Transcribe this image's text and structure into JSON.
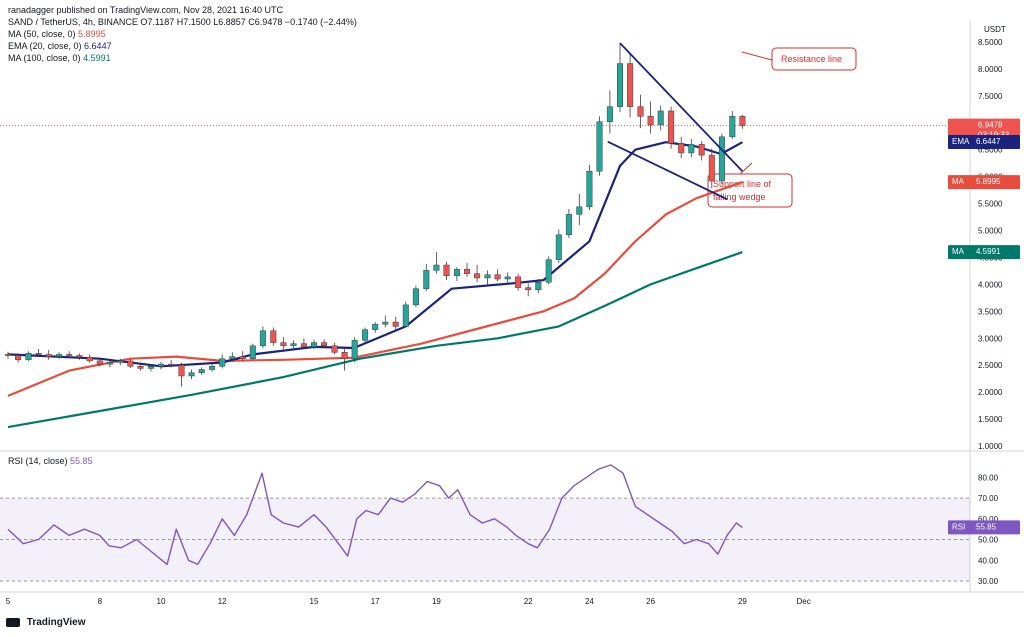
{
  "header": {
    "publisher": "ranadagger published on TradingView.com, Nov 28, 2021 16:40 UTC",
    "symbol_line": "SAND / TetherUS, 4h, BINANCE  O7.1187 H7.1500 L6.8857 C6.9478 −0.1740 (−2.44%)",
    "ma50": "MA (50, close, 0)",
    "ma50_val": "5.8995",
    "ema20": "EMA (20, close, 0)",
    "ema20_val": "6.6447",
    "ma100": "MA (100, close, 0)",
    "ma100_val": "4.5991",
    "rsi_title": "RSI (14, close)",
    "rsi_val": "55.85"
  },
  "footer": {
    "brand": "TradingView"
  },
  "colors": {
    "ema20": "#1a237e",
    "ma50": "#e74c3c",
    "ma100": "#00796b",
    "up": "#26a69a",
    "down": "#ef5350",
    "rsi": "#7e57c2",
    "annotation": "#d32f2f"
  },
  "annotations": {
    "resistance": "Resistance line",
    "support_1": "Support line of",
    "support_2": "falling wedge"
  },
  "price_tags": {
    "last": "6.9478",
    "countdown": "03:19:33",
    "ema": "EMA",
    "ema_val": "6.6447",
    "ma50": "MA",
    "ma50_val": "5.8995",
    "ma100": "MA",
    "ma100_val": "4.5991",
    "rsi": "RSI",
    "rsi_val": "55.85"
  },
  "chart_data": [
    {
      "type": "candlestick",
      "title": "SAND / TetherUS, 4h, BINANCE",
      "y_unit": "USDT",
      "ylim": [
        1.0,
        8.5
      ],
      "y_ticks": [
        "1.0000",
        "1.5000",
        "2.0000",
        "2.5000",
        "3.0000",
        "3.5000",
        "4.0000",
        "4.5000",
        "5.0000",
        "5.5000",
        "6.0000",
        "6.5000",
        "7.0000",
        "7.5000",
        "8.0000",
        "8.5000"
      ],
      "x_ticks": [
        "5",
        "8",
        "10",
        "12",
        "15",
        "17",
        "19",
        "22",
        "24",
        "26",
        "29",
        "Dec"
      ],
      "x_tick_days": [
        5,
        8,
        10,
        12,
        15,
        17,
        19,
        22,
        24,
        26,
        29,
        31
      ],
      "x_range_days": [
        5,
        33
      ],
      "candles": [
        {
          "d": 5.0,
          "o": 2.7,
          "h": 2.75,
          "l": 2.62,
          "c": 2.68
        },
        {
          "d": 5.33,
          "o": 2.68,
          "h": 2.72,
          "l": 2.55,
          "c": 2.6
        },
        {
          "d": 5.67,
          "o": 2.6,
          "h": 2.76,
          "l": 2.58,
          "c": 2.72
        },
        {
          "d": 6.0,
          "o": 2.72,
          "h": 2.8,
          "l": 2.66,
          "c": 2.7
        },
        {
          "d": 6.33,
          "o": 2.7,
          "h": 2.78,
          "l": 2.6,
          "c": 2.66
        },
        {
          "d": 6.67,
          "o": 2.66,
          "h": 2.74,
          "l": 2.62,
          "c": 2.7
        },
        {
          "d": 7.0,
          "o": 2.7,
          "h": 2.76,
          "l": 2.64,
          "c": 2.68
        },
        {
          "d": 7.33,
          "o": 2.68,
          "h": 2.72,
          "l": 2.6,
          "c": 2.65
        },
        {
          "d": 7.67,
          "o": 2.65,
          "h": 2.7,
          "l": 2.55,
          "c": 2.58
        },
        {
          "d": 8.0,
          "o": 2.58,
          "h": 2.64,
          "l": 2.48,
          "c": 2.52
        },
        {
          "d": 8.33,
          "o": 2.52,
          "h": 2.6,
          "l": 2.46,
          "c": 2.55
        },
        {
          "d": 8.67,
          "o": 2.55,
          "h": 2.62,
          "l": 2.5,
          "c": 2.58
        },
        {
          "d": 9.0,
          "o": 2.58,
          "h": 2.62,
          "l": 2.45,
          "c": 2.48
        },
        {
          "d": 9.33,
          "o": 2.48,
          "h": 2.55,
          "l": 2.4,
          "c": 2.44
        },
        {
          "d": 9.67,
          "o": 2.44,
          "h": 2.52,
          "l": 2.38,
          "c": 2.48
        },
        {
          "d": 10.0,
          "o": 2.48,
          "h": 2.56,
          "l": 2.42,
          "c": 2.52
        },
        {
          "d": 10.33,
          "o": 2.52,
          "h": 2.6,
          "l": 2.46,
          "c": 2.5
        },
        {
          "d": 10.67,
          "o": 2.5,
          "h": 2.55,
          "l": 2.1,
          "c": 2.3
        },
        {
          "d": 11.0,
          "o": 2.3,
          "h": 2.42,
          "l": 2.24,
          "c": 2.36
        },
        {
          "d": 11.33,
          "o": 2.36,
          "h": 2.46,
          "l": 2.32,
          "c": 2.42
        },
        {
          "d": 11.67,
          "o": 2.42,
          "h": 2.52,
          "l": 2.38,
          "c": 2.48
        },
        {
          "d": 12.0,
          "o": 2.48,
          "h": 2.7,
          "l": 2.44,
          "c": 2.62
        },
        {
          "d": 12.33,
          "o": 2.62,
          "h": 2.74,
          "l": 2.56,
          "c": 2.66
        },
        {
          "d": 12.67,
          "o": 2.66,
          "h": 2.76,
          "l": 2.58,
          "c": 2.62
        },
        {
          "d": 13.0,
          "o": 2.62,
          "h": 2.9,
          "l": 2.6,
          "c": 2.86
        },
        {
          "d": 13.33,
          "o": 2.86,
          "h": 3.22,
          "l": 2.82,
          "c": 3.14
        },
        {
          "d": 13.67,
          "o": 3.14,
          "h": 3.2,
          "l": 2.86,
          "c": 2.92
        },
        {
          "d": 14.0,
          "o": 2.92,
          "h": 3.02,
          "l": 2.8,
          "c": 2.86
        },
        {
          "d": 14.33,
          "o": 2.86,
          "h": 2.96,
          "l": 2.78,
          "c": 2.9
        },
        {
          "d": 14.67,
          "o": 2.9,
          "h": 3.0,
          "l": 2.82,
          "c": 2.84
        },
        {
          "d": 15.0,
          "o": 2.84,
          "h": 2.98,
          "l": 2.8,
          "c": 2.92
        },
        {
          "d": 15.33,
          "o": 2.92,
          "h": 2.98,
          "l": 2.82,
          "c": 2.86
        },
        {
          "d": 15.67,
          "o": 2.86,
          "h": 2.92,
          "l": 2.7,
          "c": 2.74
        },
        {
          "d": 16.0,
          "o": 2.74,
          "h": 2.8,
          "l": 2.4,
          "c": 2.62
        },
        {
          "d": 16.33,
          "o": 2.62,
          "h": 3.02,
          "l": 2.56,
          "c": 2.96
        },
        {
          "d": 16.67,
          "o": 2.96,
          "h": 3.2,
          "l": 2.92,
          "c": 3.16
        },
        {
          "d": 17.0,
          "o": 3.16,
          "h": 3.3,
          "l": 3.1,
          "c": 3.26
        },
        {
          "d": 17.33,
          "o": 3.26,
          "h": 3.42,
          "l": 3.2,
          "c": 3.3
        },
        {
          "d": 17.67,
          "o": 3.3,
          "h": 3.4,
          "l": 3.16,
          "c": 3.22
        },
        {
          "d": 18.0,
          "o": 3.22,
          "h": 3.68,
          "l": 3.2,
          "c": 3.62
        },
        {
          "d": 18.33,
          "o": 3.62,
          "h": 3.98,
          "l": 3.58,
          "c": 3.92
        },
        {
          "d": 18.67,
          "o": 3.92,
          "h": 4.38,
          "l": 3.88,
          "c": 4.26
        },
        {
          "d": 19.0,
          "o": 4.26,
          "h": 4.6,
          "l": 4.2,
          "c": 4.36
        },
        {
          "d": 19.33,
          "o": 4.36,
          "h": 4.42,
          "l": 4.08,
          "c": 4.16
        },
        {
          "d": 19.67,
          "o": 4.16,
          "h": 4.32,
          "l": 4.06,
          "c": 4.28
        },
        {
          "d": 20.0,
          "o": 4.28,
          "h": 4.4,
          "l": 4.14,
          "c": 4.2
        },
        {
          "d": 20.33,
          "o": 4.2,
          "h": 4.36,
          "l": 4.04,
          "c": 4.12
        },
        {
          "d": 20.67,
          "o": 4.12,
          "h": 4.26,
          "l": 4.0,
          "c": 4.18
        },
        {
          "d": 21.0,
          "o": 4.18,
          "h": 4.28,
          "l": 4.06,
          "c": 4.1
        },
        {
          "d": 21.33,
          "o": 4.1,
          "h": 4.22,
          "l": 4.0,
          "c": 4.14
        },
        {
          "d": 21.67,
          "o": 4.14,
          "h": 4.2,
          "l": 3.88,
          "c": 3.94
        },
        {
          "d": 22.0,
          "o": 3.94,
          "h": 4.02,
          "l": 3.78,
          "c": 3.9
        },
        {
          "d": 22.33,
          "o": 3.9,
          "h": 4.1,
          "l": 3.84,
          "c": 4.04
        },
        {
          "d": 22.67,
          "o": 4.04,
          "h": 4.52,
          "l": 4.0,
          "c": 4.46
        },
        {
          "d": 23.0,
          "o": 4.46,
          "h": 5.02,
          "l": 4.4,
          "c": 4.92
        },
        {
          "d": 23.33,
          "o": 4.92,
          "h": 5.4,
          "l": 4.86,
          "c": 5.3
        },
        {
          "d": 23.67,
          "o": 5.3,
          "h": 5.68,
          "l": 5.1,
          "c": 5.44
        },
        {
          "d": 24.0,
          "o": 5.44,
          "h": 6.22,
          "l": 5.38,
          "c": 6.1
        },
        {
          "d": 24.33,
          "o": 6.1,
          "h": 7.12,
          "l": 6.02,
          "c": 7.02
        },
        {
          "d": 24.67,
          "o": 7.02,
          "h": 7.6,
          "l": 6.8,
          "c": 7.3
        },
        {
          "d": 25.0,
          "o": 7.3,
          "h": 8.48,
          "l": 7.2,
          "c": 8.1
        },
        {
          "d": 25.33,
          "o": 8.1,
          "h": 8.3,
          "l": 7.1,
          "c": 7.3
        },
        {
          "d": 25.67,
          "o": 7.3,
          "h": 7.52,
          "l": 6.9,
          "c": 7.12
        },
        {
          "d": 26.0,
          "o": 7.12,
          "h": 7.4,
          "l": 6.8,
          "c": 6.96
        },
        {
          "d": 26.33,
          "o": 6.96,
          "h": 7.32,
          "l": 6.86,
          "c": 7.22
        },
        {
          "d": 26.67,
          "o": 7.22,
          "h": 7.3,
          "l": 6.52,
          "c": 6.62
        },
        {
          "d": 27.0,
          "o": 6.62,
          "h": 6.74,
          "l": 6.34,
          "c": 6.44
        },
        {
          "d": 27.33,
          "o": 6.44,
          "h": 6.7,
          "l": 6.36,
          "c": 6.6
        },
        {
          "d": 27.67,
          "o": 6.6,
          "h": 6.66,
          "l": 6.3,
          "c": 6.4
        },
        {
          "d": 28.0,
          "o": 6.4,
          "h": 6.52,
          "l": 5.78,
          "c": 5.92
        },
        {
          "d": 28.33,
          "o": 5.92,
          "h": 6.8,
          "l": 5.86,
          "c": 6.74
        },
        {
          "d": 28.67,
          "o": 6.74,
          "h": 7.22,
          "l": 6.7,
          "c": 7.12
        },
        {
          "d": 29.0,
          "o": 7.12,
          "h": 7.15,
          "l": 6.89,
          "c": 6.95
        }
      ],
      "ema20": [
        [
          5,
          2.7
        ],
        [
          8,
          2.62
        ],
        [
          10,
          2.48
        ],
        [
          12,
          2.55
        ],
        [
          13,
          2.7
        ],
        [
          15,
          2.84
        ],
        [
          16.3,
          2.82
        ],
        [
          18,
          3.22
        ],
        [
          19.5,
          3.92
        ],
        [
          21.5,
          4.02
        ],
        [
          22.5,
          4.08
        ],
        [
          24,
          4.8
        ],
        [
          25,
          6.2
        ],
        [
          25.5,
          6.5
        ],
        [
          26.5,
          6.64
        ],
        [
          27.5,
          6.56
        ],
        [
          28.3,
          6.42
        ],
        [
          29,
          6.64
        ]
      ],
      "ma50": [
        [
          5,
          1.93
        ],
        [
          7,
          2.4
        ],
        [
          9,
          2.62
        ],
        [
          10.5,
          2.66
        ],
        [
          12,
          2.58
        ],
        [
          14,
          2.6
        ],
        [
          16.3,
          2.64
        ],
        [
          18.5,
          2.9
        ],
        [
          20.5,
          3.2
        ],
        [
          22.5,
          3.5
        ],
        [
          23.5,
          3.74
        ],
        [
          24.5,
          4.2
        ],
        [
          25.5,
          4.8
        ],
        [
          26.5,
          5.3
        ],
        [
          27.5,
          5.6
        ],
        [
          29,
          5.9
        ]
      ],
      "ma100": [
        [
          5,
          1.35
        ],
        [
          8,
          1.65
        ],
        [
          11,
          1.95
        ],
        [
          14,
          2.28
        ],
        [
          16.5,
          2.62
        ],
        [
          19,
          2.86
        ],
        [
          21,
          3.0
        ],
        [
          23,
          3.22
        ],
        [
          24.5,
          3.6
        ],
        [
          26,
          4.0
        ],
        [
          27.5,
          4.3
        ],
        [
          29,
          4.6
        ]
      ],
      "trendlines": [
        {
          "name": "Resistance line",
          "from": [
            25.0,
            8.48
          ],
          "to": [
            29.0,
            6.1
          ]
        },
        {
          "name": "Support line of falling wedge",
          "from": [
            24.6,
            6.65
          ],
          "to": [
            28.5,
            5.58
          ]
        }
      ],
      "last_price": 6.9478
    },
    {
      "type": "line",
      "title": "RSI (14, close)",
      "ylim": [
        25,
        90
      ],
      "y_ticks": [
        "30.00",
        "40.00",
        "50.00",
        "60.00",
        "70.00",
        "80.00"
      ],
      "bands": [
        30,
        70
      ],
      "midline": 50,
      "series": [
        {
          "name": "RSI",
          "points": [
            [
              5,
              55
            ],
            [
              5.5,
              48
            ],
            [
              6,
              50
            ],
            [
              6.5,
              57
            ],
            [
              7,
              52
            ],
            [
              7.5,
              55
            ],
            [
              8,
              52
            ],
            [
              8.3,
              47
            ],
            [
              8.7,
              46
            ],
            [
              9.2,
              50
            ],
            [
              9.7,
              44
            ],
            [
              10.2,
              38
            ],
            [
              10.5,
              55
            ],
            [
              10.9,
              40
            ],
            [
              11.2,
              38
            ],
            [
              11.6,
              48
            ],
            [
              12,
              60
            ],
            [
              12.4,
              52
            ],
            [
              12.8,
              62
            ],
            [
              13.3,
              82
            ],
            [
              13.6,
              62
            ],
            [
              14,
              58
            ],
            [
              14.5,
              56
            ],
            [
              15,
              62
            ],
            [
              15.4,
              56
            ],
            [
              15.8,
              48
            ],
            [
              16.1,
              42
            ],
            [
              16.4,
              60
            ],
            [
              16.7,
              64
            ],
            [
              17.1,
              62
            ],
            [
              17.5,
              70
            ],
            [
              17.9,
              68
            ],
            [
              18.3,
              72
            ],
            [
              18.7,
              78
            ],
            [
              19.1,
              76
            ],
            [
              19.4,
              70
            ],
            [
              19.7,
              74
            ],
            [
              20.1,
              62
            ],
            [
              20.5,
              58
            ],
            [
              20.9,
              60
            ],
            [
              21.3,
              56
            ],
            [
              21.6,
              52
            ],
            [
              22,
              48
            ],
            [
              22.3,
              46
            ],
            [
              22.7,
              55
            ],
            [
              23.1,
              70
            ],
            [
              23.5,
              76
            ],
            [
              23.9,
              80
            ],
            [
              24.3,
              84
            ],
            [
              24.7,
              86
            ],
            [
              25.1,
              82
            ],
            [
              25.5,
              66
            ],
            [
              25.9,
              62
            ],
            [
              26.3,
              58
            ],
            [
              26.7,
              54
            ],
            [
              27.1,
              48
            ],
            [
              27.5,
              50
            ],
            [
              27.9,
              48
            ],
            [
              28.2,
              43
            ],
            [
              28.5,
              52
            ],
            [
              28.8,
              58
            ],
            [
              29,
              55.85
            ]
          ]
        }
      ],
      "last_value": 55.85
    }
  ]
}
